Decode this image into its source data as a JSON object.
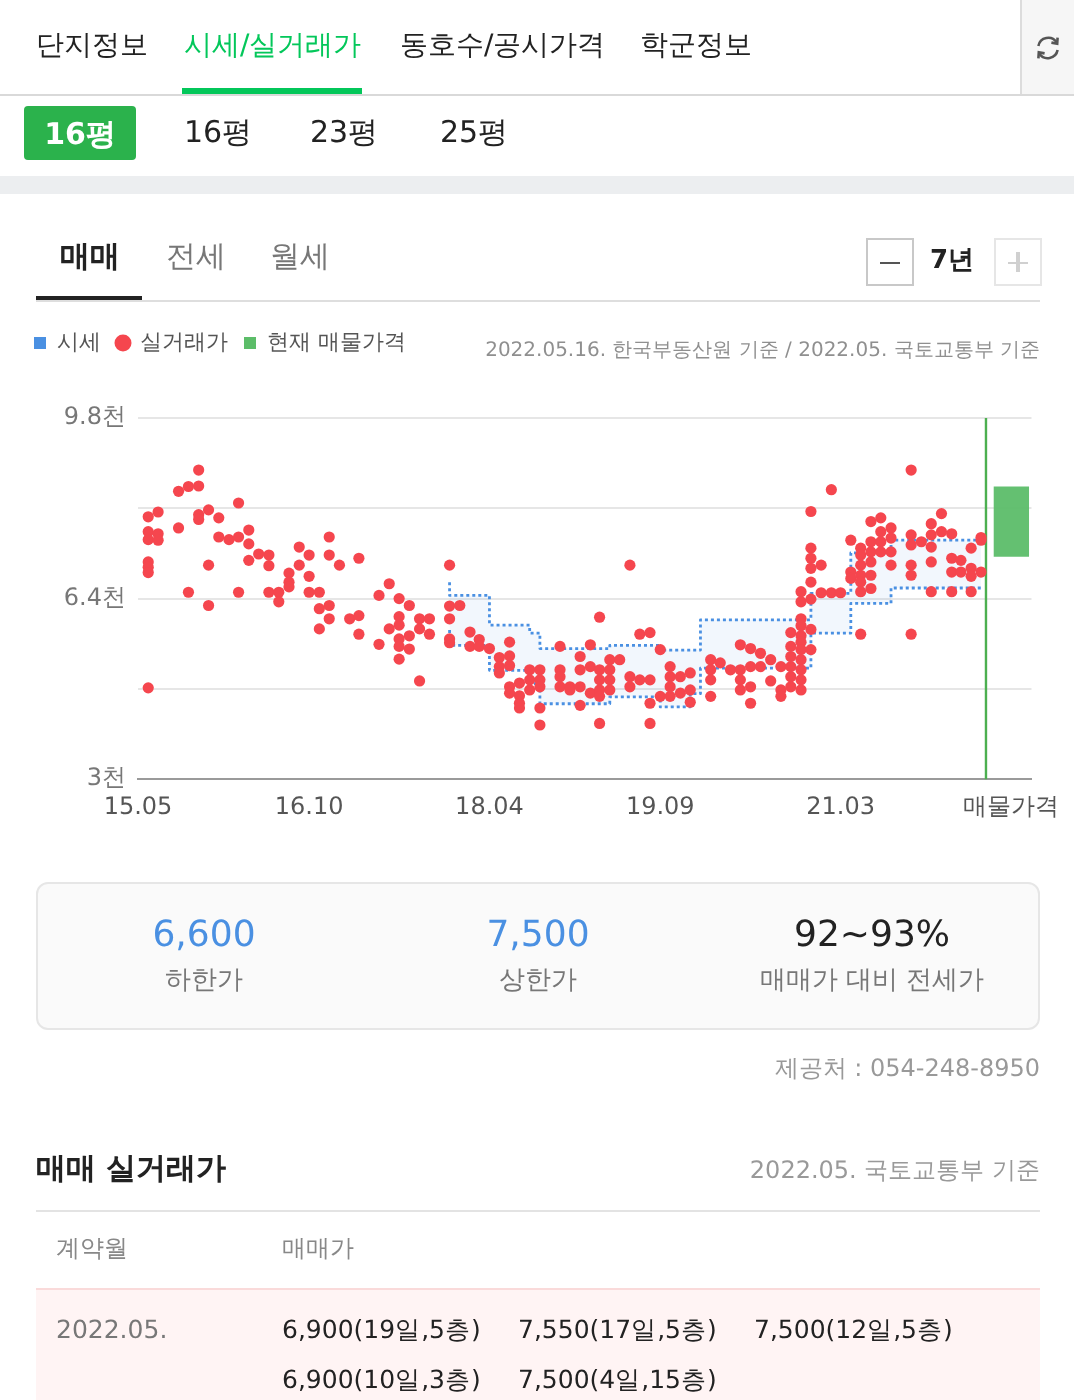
{
  "chart_data": {
    "type": "scatter",
    "annotations": [
      "단지정보",
      "시세/실거래가",
      "동호수/공시가격",
      "학군정보",
      "16평",
      "16평",
      "23평",
      "25평",
      "매매",
      "전세",
      "월세",
      "7년",
      "2022.05.16. 한국부동산원 기준 / 2022.05. 국토교통부 기준",
      "6,600",
      "하한가",
      "7,500",
      "상한가",
      "92~93%",
      "매매가 대비 전세가",
      "제공처 : 054-248-8950",
      "매매 실거래가",
      "2022.05. 국토교통부 기준",
      "계약월",
      "매매가",
      "2022.05.",
      "6,900(19일,5층)",
      "7,550(17일,5층)",
      "7,500(12일,5층)",
      "6,900(10일,3층)",
      "7,500(4일,15층)"
    ],
    "legend": "top left",
    "grid": "y",
    "xlim": [
      "2015-05",
      "2022-10"
    ],
    "xticks": [
      {
        "value": "2015-05",
        "label": "15.05"
      },
      {
        "value": "2016-10",
        "label": "16.10"
      },
      {
        "value": "2018-04",
        "label": "18.04"
      },
      {
        "value": "2019-09",
        "label": "19.09"
      },
      {
        "value": "2021-03",
        "label": "21.03"
      },
      {
        "value": "2022-08",
        "label": "매물가격"
      }
    ],
    "ylim": [
      3,
      9.8
    ],
    "yticks": [
      {
        "value": 3,
        "label": "3천"
      },
      {
        "value": 4.7,
        "label": null
      },
      {
        "value": 6.4,
        "label": "6.4천"
      },
      {
        "value": 8.1,
        "label": null
      },
      {
        "value": 9.8,
        "label": "9.8천"
      }
    ],
    "ref_lines": [
      {
        "axis": "x",
        "value": "2022-05-16",
        "color": "#4caf50"
      }
    ],
    "series": [
      {
        "type": "step",
        "name": "시세",
        "color": "#4a90e2",
        "line_style": "dotted",
        "x": [
          "2017-12",
          "2018-04",
          "2018-08",
          "2018-09",
          "2019-04",
          "2019-09",
          "2019-12",
          "2020-01",
          "2020-12",
          "2021-04",
          "2021-08",
          "2021-10",
          "2022-05"
        ],
        "values": [
          6.71,
          6.46,
          5.9,
          5.75,
          5.46,
          5.52,
          5.43,
          5.43,
          6.0,
          6.5,
          7.26,
          7.5,
          7.5
        ],
        "lower": [
          5.81,
          5.52,
          5.05,
          4.8,
          4.42,
          4.55,
          4.36,
          4.61,
          5.09,
          5.75,
          6.31,
          6.6,
          6.6
        ],
        "upper": [
          6.71,
          6.46,
          5.9,
          5.75,
          5.46,
          5.52,
          5.43,
          5.43,
          6.0,
          6.5,
          7.26,
          7.5,
          7.5
        ]
      },
      {
        "type": "step",
        "color": "#4a90e2",
        "line_style": "dotted",
        "x": [
          "2017-12",
          "2018-04",
          "2018-08",
          "2018-09",
          "2019-04",
          "2019-09",
          "2019-12",
          "2020-01",
          "2020-12",
          "2021-04",
          "2021-08",
          "2021-10",
          "2022-05"
        ],
        "values": [
          5.81,
          5.52,
          5.05,
          4.8,
          4.42,
          4.55,
          4.36,
          4.61,
          5.09,
          5.75,
          6.31,
          6.6,
          6.6
        ]
      },
      {
        "name": "실거래가",
        "color": "#f5464e",
        "marker": "circle",
        "x": [
          "2015-06",
          "2015-06",
          "2015-06",
          "2015-06",
          "2015-06",
          "2015-06",
          "2015-06",
          "2015-07",
          "2015-07",
          "2015-07",
          "2015-09",
          "2015-09",
          "2015-10",
          "2015-10",
          "2015-11",
          "2015-11",
          "2015-11",
          "2015-11",
          "2015-12",
          "2015-12",
          "2015-12",
          "2016-01",
          "2016-01",
          "2016-02",
          "2016-03",
          "2016-03",
          "2016-03",
          "2016-04",
          "2016-04",
          "2016-04",
          "2016-05",
          "2016-06",
          "2016-06",
          "2016-06",
          "2016-07",
          "2016-07",
          "2016-08",
          "2016-08",
          "2016-08",
          "2016-09",
          "2016-09",
          "2016-10",
          "2016-10",
          "2016-10",
          "2016-11",
          "2016-11",
          "2016-11",
          "2016-12",
          "2016-12",
          "2016-12",
          "2016-12",
          "2017-01",
          "2017-02",
          "2017-03",
          "2017-03",
          "2017-03",
          "2017-05",
          "2017-05",
          "2017-06",
          "2017-06",
          "2017-07",
          "2017-07",
          "2017-07",
          "2017-07",
          "2017-07",
          "2017-07",
          "2017-08",
          "2017-08",
          "2017-08",
          "2017-09",
          "2017-09",
          "2017-09",
          "2017-10",
          "2017-10",
          "2017-12",
          "2017-12",
          "2017-12",
          "2017-12",
          "2017-12",
          "2018-01",
          "2018-02",
          "2018-02",
          "2018-03",
          "2018-03",
          "2018-04",
          "2018-05",
          "2018-05",
          "2018-05",
          "2018-06",
          "2018-06",
          "2018-06",
          "2018-06",
          "2018-06",
          "2018-07",
          "2018-07",
          "2018-07",
          "2018-07",
          "2018-08",
          "2018-08",
          "2018-08",
          "2018-09",
          "2018-09",
          "2018-09",
          "2018-09",
          "2018-09",
          "2018-11",
          "2018-11",
          "2018-11",
          "2018-11",
          "2018-12",
          "2018-12",
          "2019-01",
          "2019-01",
          "2019-01",
          "2019-01",
          "2019-02",
          "2019-02",
          "2019-02",
          "2019-03",
          "2019-03",
          "2019-03",
          "2019-03",
          "2019-03",
          "2019-03",
          "2019-04",
          "2019-04",
          "2019-04",
          "2019-04",
          "2019-05",
          "2019-06",
          "2019-06",
          "2019-06",
          "2019-07",
          "2019-07",
          "2019-08",
          "2019-08",
          "2019-08",
          "2019-08",
          "2019-09",
          "2019-09",
          "2019-10",
          "2019-10",
          "2019-10",
          "2019-10",
          "2019-11",
          "2019-11",
          "2019-12",
          "2019-12",
          "2019-12",
          "2020-02",
          "2020-02",
          "2020-02",
          "2020-02",
          "2020-03",
          "2020-04",
          "2020-05",
          "2020-05",
          "2020-05",
          "2020-05",
          "2020-06",
          "2020-06",
          "2020-06",
          "2020-06",
          "2020-07",
          "2020-07",
          "2020-08",
          "2020-08",
          "2020-09",
          "2020-09",
          "2020-09",
          "2020-10",
          "2020-10",
          "2020-10",
          "2020-10",
          "2020-10",
          "2020-10",
          "2020-11",
          "2020-11",
          "2020-11",
          "2020-11",
          "2020-11",
          "2020-11",
          "2020-11",
          "2020-11",
          "2020-11",
          "2020-11",
          "2020-11",
          "2020-12",
          "2020-12",
          "2020-12",
          "2020-12",
          "2020-12",
          "2020-12",
          "2020-12",
          "2020-12",
          "2021-01",
          "2021-01",
          "2021-02",
          "2021-02",
          "2021-03",
          "2021-04",
          "2021-04",
          "2021-04",
          "2021-05",
          "2021-05",
          "2021-05",
          "2021-05",
          "2021-05",
          "2021-05",
          "2021-05",
          "2021-06",
          "2021-06",
          "2021-06",
          "2021-06",
          "2021-06",
          "2021-06",
          "2021-07",
          "2021-07",
          "2021-07",
          "2021-07",
          "2021-08",
          "2021-08",
          "2021-08",
          "2021-08",
          "2021-10",
          "2021-10",
          "2021-10",
          "2021-10",
          "2021-10",
          "2021-10",
          "2021-11",
          "2021-12",
          "2021-12",
          "2021-12",
          "2021-12",
          "2021-12",
          "2022-01",
          "2022-01",
          "2022-02",
          "2022-02",
          "2022-02",
          "2022-02",
          "2022-03",
          "2022-03",
          "2022-04",
          "2022-04",
          "2022-04",
          "2022-04",
          "2022-05",
          "2022-05",
          "2022-05"
        ],
        "values": [
          7.94,
          7.66,
          7.51,
          7.09,
          6.99,
          6.89,
          4.72,
          8.03,
          7.62,
          7.5,
          8.42,
          7.73,
          8.51,
          6.52,
          8.82,
          8.52,
          7.98,
          7.89,
          8.07,
          7.03,
          6.27,
          7.92,
          7.56,
          7.51,
          8.2,
          7.56,
          6.52,
          7.69,
          7.43,
          7.12,
          7.24,
          7.22,
          7.02,
          6.52,
          6.52,
          6.34,
          6.88,
          6.71,
          6.62,
          7.37,
          7.03,
          7.22,
          6.82,
          6.52,
          6.52,
          6.21,
          5.83,
          7.56,
          7.22,
          6.27,
          6.02,
          7.03,
          6.02,
          7.16,
          6.08,
          5.73,
          6.46,
          5.54,
          6.68,
          5.83,
          6.4,
          6.06,
          5.9,
          5.64,
          5.5,
          5.26,
          6.27,
          5.7,
          5.45,
          6.02,
          5.83,
          4.85,
          6.02,
          5.73,
          7.03,
          6.26,
          6.02,
          5.64,
          5.57,
          6.27,
          5.77,
          5.5,
          5.63,
          5.5,
          5.46,
          5.29,
          5.12,
          5.0,
          5.58,
          5.32,
          5.14,
          4.74,
          4.62,
          4.81,
          4.57,
          4.43,
          4.34,
          5.06,
          4.87,
          4.68,
          5.06,
          4.87,
          4.74,
          4.34,
          4.02,
          5.5,
          5.06,
          4.93,
          4.74,
          4.74,
          4.68,
          5.31,
          5.06,
          4.74,
          4.39,
          5.53,
          5.12,
          4.62,
          6.05,
          5.06,
          4.87,
          4.68,
          4.56,
          4.05,
          5.25,
          5.06,
          4.87,
          4.68,
          5.25,
          7.03,
          4.93,
          4.74,
          5.73,
          4.87,
          5.76,
          4.87,
          4.43,
          4.05,
          5.44,
          4.56,
          5.12,
          4.93,
          4.74,
          4.56,
          4.93,
          4.62,
          5.0,
          4.68,
          4.45,
          5.25,
          5.06,
          4.87,
          4.56,
          5.19,
          5.06,
          5.53,
          5.06,
          4.87,
          4.68,
          5.46,
          5.12,
          4.74,
          4.43,
          5.37,
          5.12,
          5.25,
          4.85,
          5.12,
          4.68,
          4.56,
          5.76,
          5.5,
          5.31,
          5.12,
          4.93,
          4.74,
          6.53,
          6.34,
          6.02,
          5.89,
          5.7,
          5.58,
          5.44,
          5.25,
          5.06,
          4.87,
          4.68,
          8.04,
          7.35,
          7.16,
          6.97,
          6.71,
          6.39,
          5.82,
          5.44,
          7.03,
          6.51,
          8.45,
          6.51,
          6.51,
          7.5,
          6.9,
          6.78,
          7.35,
          7.22,
          7.03,
          6.84,
          6.71,
          6.53,
          5.73,
          7.85,
          7.47,
          7.28,
          7.09,
          6.84,
          6.59,
          7.92,
          7.66,
          7.47,
          7.28,
          7.73,
          7.54,
          7.28,
          7.03,
          8.82,
          7.6,
          7.41,
          7.03,
          6.84,
          5.73,
          7.47,
          7.81,
          7.6,
          7.37,
          7.09,
          6.53,
          8.0,
          7.66,
          7.62,
          7.16,
          6.9,
          6.53,
          7.12,
          6.9,
          7.35,
          6.97,
          6.82,
          6.53,
          7.55,
          7.5,
          6.9
        ]
      },
      {
        "type": "bar",
        "name": "현재 매물가격",
        "color": "#5cbd69",
        "x": [
          "2022-08"
        ],
        "base": [
          7.2
        ],
        "values": [
          1.3
        ]
      }
    ]
  }
}
